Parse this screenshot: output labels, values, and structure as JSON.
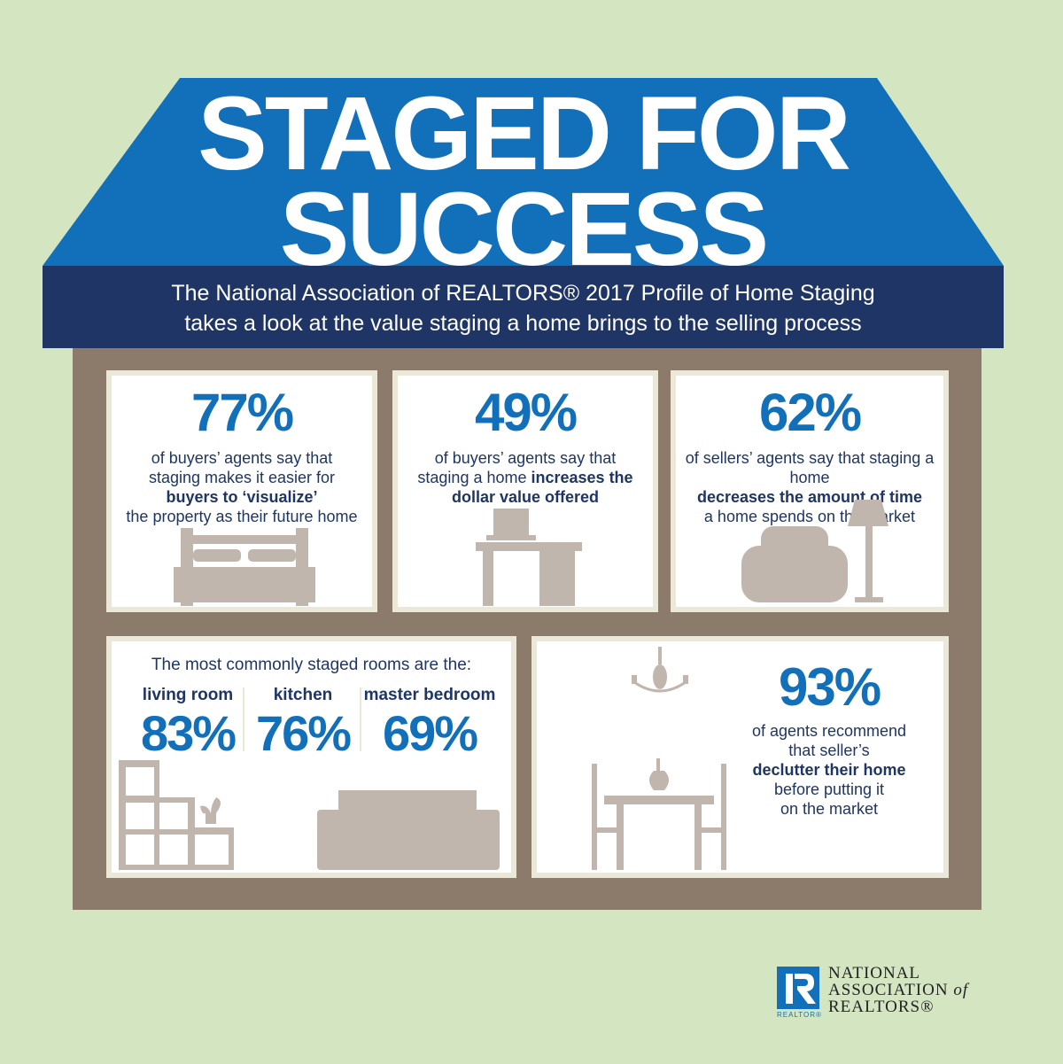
{
  "title": {
    "line1": "STAGED FOR",
    "line2": "SUCCESS"
  },
  "subtitle": {
    "line1": "The National Association of REALTORS® 2017 Profile of Home Staging",
    "line2": "takes a look at the value staging a home brings to the selling process"
  },
  "colors": {
    "background": "#d3e6c1",
    "roof": "#1170b9",
    "banner": "#1e3565",
    "house": "#8c7a6b",
    "accent": "#1170b9",
    "text": "#1e3565",
    "furniture": "#c0b6ad"
  },
  "stats": [
    {
      "value": "77%",
      "lines": [
        "of buyers’ agents say that",
        "staging makes it easier for"
      ],
      "bold": "buyers to ‘visualize’",
      "after": "the property as their future home",
      "icon": "bed-icon"
    },
    {
      "value": "49%",
      "lines": [
        "of buyers’ agents say that"
      ],
      "pre": "staging a home ",
      "bold": "increases the",
      "bold2": "dollar value offered",
      "icon": "desk-icon"
    },
    {
      "value": "62%",
      "lines": [
        "of sellers’ agents say that staging a home"
      ],
      "bold": "decreases the amount of time",
      "after": "a home spends on the market",
      "icon": "armchair-lamp-icon"
    }
  ],
  "rooms": {
    "heading": "The most commonly staged rooms are the:",
    "items": [
      {
        "label": "living room",
        "value": "83%"
      },
      {
        "label": "kitchen",
        "value": "76%"
      },
      {
        "label": "master bedroom",
        "value": "69%"
      }
    ]
  },
  "declutter": {
    "value": "93%",
    "line1": "of agents recommend",
    "line2": "that seller’s",
    "bold": "declutter their home",
    "line3": "before putting it",
    "line4": "on the market"
  },
  "logo": {
    "line1": "NATIONAL",
    "line2": "ASSOCIATION",
    "of": "of",
    "line3": "REALTORS®",
    "badge": "REALTOR®"
  }
}
